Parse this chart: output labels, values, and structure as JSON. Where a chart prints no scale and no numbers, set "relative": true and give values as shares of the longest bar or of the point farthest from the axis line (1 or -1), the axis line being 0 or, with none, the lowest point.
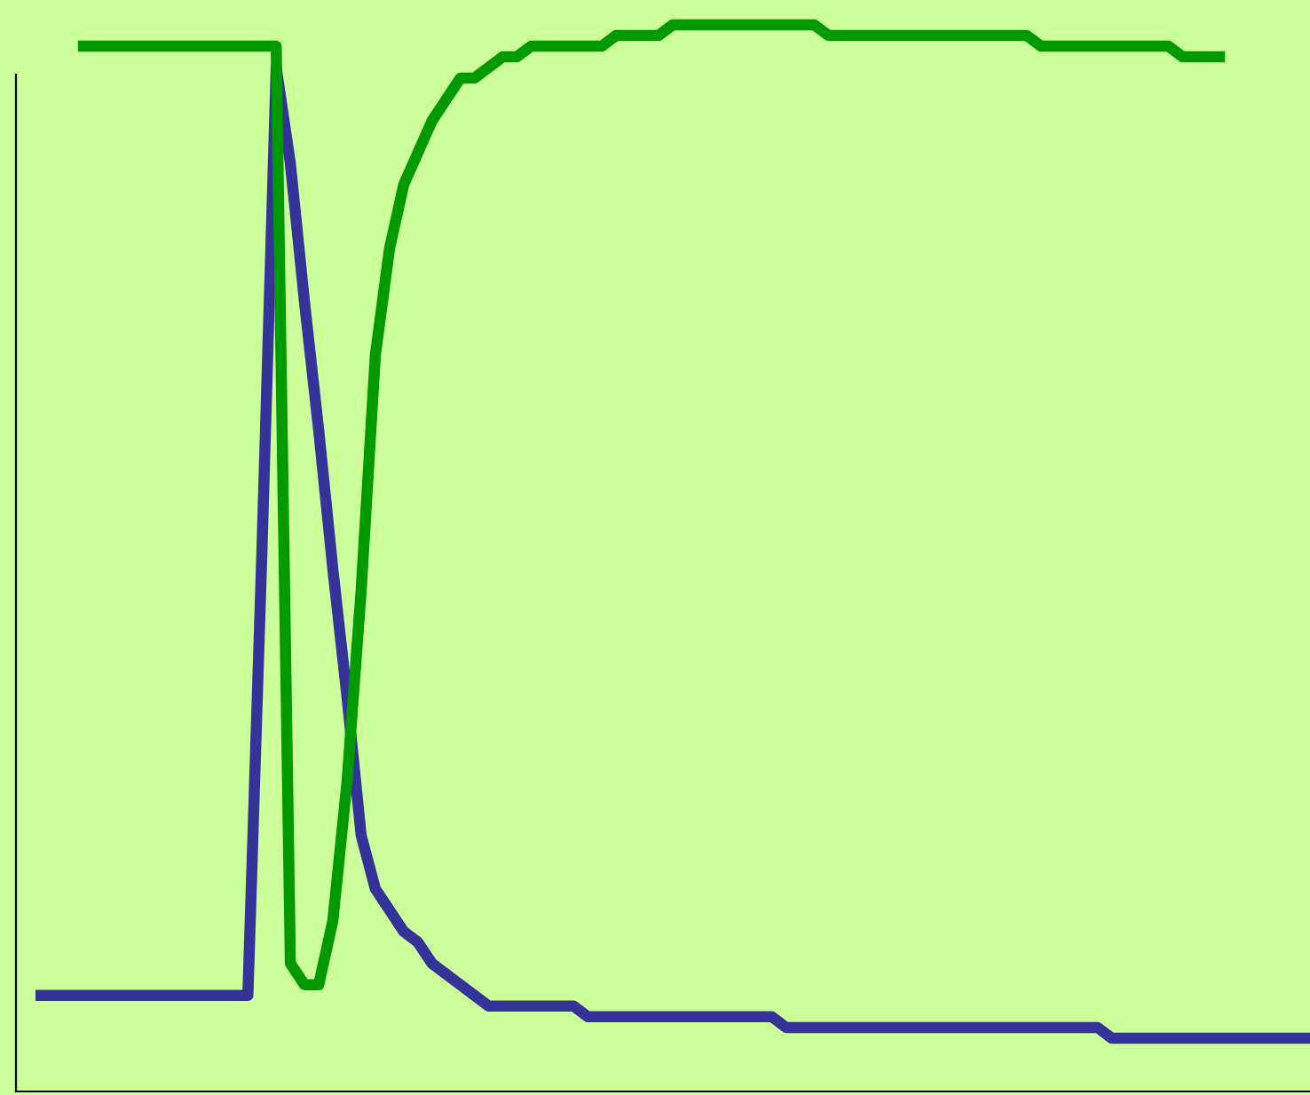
{
  "chart_data": {
    "type": "line",
    "relative": true,
    "grid": false,
    "legend": false,
    "marker": "none",
    "line_style": "solid",
    "categories": [
      null,
      null,
      null,
      null,
      null,
      null,
      null,
      null,
      null,
      null,
      null,
      null,
      null,
      null,
      null,
      null,
      null,
      null,
      null,
      null,
      null,
      null,
      null,
      null,
      null,
      null,
      null,
      null,
      null,
      null,
      null,
      null,
      null,
      null,
      null,
      null,
      null,
      null,
      null,
      null,
      null,
      null,
      null,
      null,
      null,
      null,
      null,
      null,
      null,
      null,
      null,
      null,
      null,
      null,
      null,
      null,
      null,
      null,
      null,
      null,
      null,
      null,
      null,
      null,
      null,
      null,
      null,
      null,
      null,
      null,
      null,
      null,
      null,
      null,
      null,
      null,
      null,
      null,
      null,
      null,
      null,
      null,
      null,
      null,
      null,
      null,
      null,
      null,
      null,
      null,
      null
    ],
    "series": [
      {
        "color": "#333399",
        "values": [
          0.09,
          0.09,
          0.09,
          0.09,
          0.09,
          0.09,
          0.09,
          0.09,
          0.09,
          0.09,
          0.09,
          0.09,
          0.09,
          0.09,
          0.09,
          0.09,
          0.51,
          0.96,
          0.87,
          0.74,
          0.62,
          0.49,
          0.37,
          0.24,
          0.19,
          0.17,
          0.15,
          0.14,
          0.12,
          0.11,
          0.1,
          0.09,
          0.08,
          0.08,
          0.08,
          0.08,
          0.08,
          0.08,
          0.08,
          0.07,
          0.07,
          0.07,
          0.07,
          0.07,
          0.07,
          0.07,
          0.07,
          0.07,
          0.07,
          0.07,
          0.07,
          0.07,
          0.07,
          0.06,
          0.06,
          0.06,
          0.06,
          0.06,
          0.06,
          0.06,
          0.06,
          0.06,
          0.06,
          0.06,
          0.06,
          0.06,
          0.06,
          0.06,
          0.06,
          0.06,
          0.06,
          0.06,
          0.06,
          0.06,
          0.06,
          0.06,
          0.05,
          0.05,
          0.05,
          0.05,
          0.05,
          0.05,
          0.05,
          0.05,
          0.05,
          0.05,
          0.05,
          0.05,
          0.05,
          0.05,
          0.05
        ]
      },
      {
        "color": "#009900",
        "values": [
          null,
          null,
          null,
          0.98,
          0.98,
          0.98,
          0.98,
          0.98,
          0.98,
          0.98,
          0.98,
          0.98,
          0.98,
          0.98,
          0.98,
          0.98,
          0.98,
          0.98,
          0.12,
          0.1,
          0.1,
          0.16,
          0.29,
          0.47,
          0.69,
          0.79,
          0.85,
          0.88,
          0.91,
          0.93,
          0.95,
          0.95,
          0.96,
          0.97,
          0.97,
          0.98,
          0.98,
          0.98,
          0.98,
          0.98,
          0.98,
          0.99,
          0.99,
          0.99,
          0.99,
          1.0,
          1.0,
          1.0,
          1.0,
          1.0,
          1.0,
          1.0,
          1.0,
          1.0,
          1.0,
          1.0,
          0.99,
          0.99,
          0.99,
          0.99,
          0.99,
          0.99,
          0.99,
          0.99,
          0.99,
          0.99,
          0.99,
          0.99,
          0.99,
          0.99,
          0.99,
          0.98,
          0.98,
          0.98,
          0.98,
          0.98,
          0.98,
          0.98,
          0.98,
          0.98,
          0.98,
          0.97,
          0.97,
          0.97,
          0.97,
          null,
          null,
          null,
          null,
          null,
          null
        ]
      }
    ]
  }
}
